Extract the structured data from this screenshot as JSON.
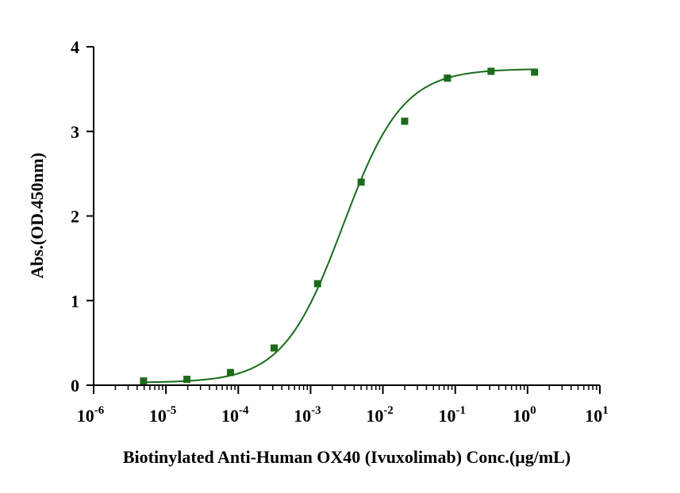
{
  "chart_data": {
    "type": "scatter",
    "title": "",
    "xlabel": "Biotinylated Anti-Human OX40 (Ivuxolimab) Conc.(μg/mL)",
    "ylabel": "Abs.(OD.450nm)",
    "x_scale": "log",
    "xlim": [
      1e-06,
      10
    ],
    "ylim": [
      0,
      4
    ],
    "x_ticks": [
      {
        "base": "10",
        "exp": "-6"
      },
      {
        "base": "10",
        "exp": "-5"
      },
      {
        "base": "10",
        "exp": "-4"
      },
      {
        "base": "10",
        "exp": "-3"
      },
      {
        "base": "10",
        "exp": "-2"
      },
      {
        "base": "10",
        "exp": "-1"
      },
      {
        "base": "10",
        "exp": "0"
      },
      {
        "base": "10",
        "exp": "1"
      }
    ],
    "y_ticks": [
      "0",
      "1",
      "2",
      "3",
      "4"
    ],
    "grid": false,
    "legend": "none",
    "color": "#1b6b1b",
    "series": [
      {
        "x": [
          4.9e-06,
          1.95e-05,
          7.8e-05,
          0.000313,
          0.00125,
          0.005,
          0.02,
          0.078,
          0.313,
          1.25
        ],
        "y": [
          0.05,
          0.07,
          0.15,
          0.44,
          1.2,
          2.4,
          3.12,
          3.63,
          3.71,
          3.7
        ]
      }
    ]
  }
}
